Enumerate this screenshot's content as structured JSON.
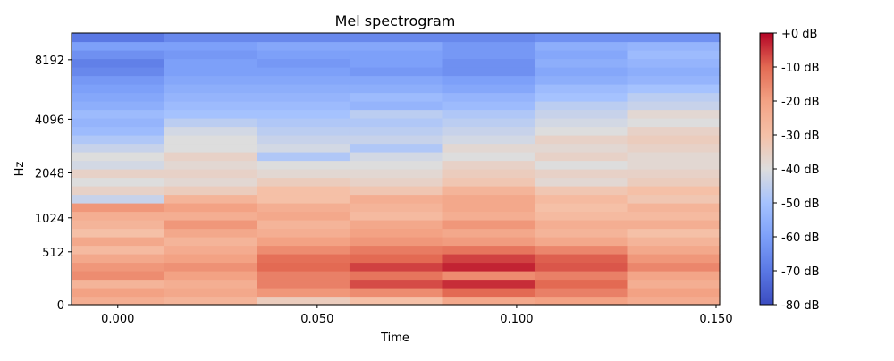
{
  "chart_data": {
    "type": "heatmap",
    "title": "Mel spectrogram",
    "xlabel": "Time",
    "ylabel": "Hz",
    "x_ticks": [
      "0.000",
      "0.050",
      "0.100",
      "0.150"
    ],
    "x_tick_values": [
      0.0,
      0.05,
      0.1,
      0.15
    ],
    "xlim": [
      -0.0116,
      0.1509
    ],
    "y_ticks": [
      "0",
      "512",
      "1024",
      "2048",
      "4096",
      "8192"
    ],
    "y_tick_values": [
      0,
      512,
      1024,
      2048,
      4096,
      8192
    ],
    "y_scale": "mel",
    "ylim": [
      0,
      11025
    ],
    "frame_times": [
      0.0,
      0.0232,
      0.0464,
      0.0697,
      0.0929,
      0.1161,
      0.1393
    ],
    "mel_bands": 32,
    "db_values_low_to_high_band": [
      [
        -24,
        -26,
        -34,
        -30,
        -22,
        -20,
        -23
      ],
      [
        -20,
        -22,
        -18,
        -16,
        -10,
        -14,
        -20
      ],
      [
        -26,
        -24,
        -14,
        -7,
        -4,
        -10,
        -24
      ],
      [
        -16,
        -20,
        -14,
        -12,
        -16,
        -14,
        -21
      ],
      [
        -18,
        -17,
        -10,
        -6,
        -3,
        -8,
        -15
      ],
      [
        -22,
        -20,
        -11,
        -10,
        -6,
        -9,
        -18
      ],
      [
        -28,
        -23,
        -16,
        -13,
        -12,
        -15,
        -22
      ],
      [
        -22,
        -26,
        -20,
        -18,
        -19,
        -22,
        -26
      ],
      [
        -30,
        -22,
        -24,
        -20,
        -22,
        -26,
        -30
      ],
      [
        -26,
        -18,
        -26,
        -22,
        -18,
        -24,
        -24
      ],
      [
        -24,
        -24,
        -22,
        -28,
        -24,
        -28,
        -28
      ],
      [
        -18,
        -20,
        -24,
        -26,
        -22,
        -30,
        -26
      ],
      [
        -44,
        -26,
        -30,
        -24,
        -22,
        -28,
        -32
      ],
      [
        -36,
        -34,
        -30,
        -32,
        -26,
        -32,
        -30
      ],
      [
        -40,
        -38,
        -34,
        -36,
        -32,
        -38,
        -34
      ],
      [
        -36,
        -36,
        -38,
        -38,
        -34,
        -36,
        -36
      ],
      [
        -42,
        -38,
        -40,
        -40,
        -36,
        -40,
        -38
      ],
      [
        -40,
        -36,
        -48,
        -42,
        -40,
        -36,
        -38
      ],
      [
        -44,
        -40,
        -42,
        -48,
        -38,
        -38,
        -36
      ],
      [
        -48,
        -40,
        -44,
        -44,
        -42,
        -36,
        -34
      ],
      [
        -52,
        -42,
        -46,
        -46,
        -44,
        -40,
        -36
      ],
      [
        -54,
        -46,
        -48,
        -48,
        -46,
        -42,
        -40
      ],
      [
        -52,
        -50,
        -50,
        -46,
        -48,
        -44,
        -38
      ],
      [
        -56,
        -52,
        -52,
        -54,
        -52,
        -46,
        -44
      ],
      [
        -58,
        -54,
        -54,
        -52,
        -54,
        -50,
        -46
      ],
      [
        -60,
        -56,
        -56,
        -56,
        -58,
        -52,
        -50
      ],
      [
        -62,
        -58,
        -58,
        -58,
        -60,
        -56,
        -54
      ],
      [
        -66,
        -60,
        -60,
        -62,
        -64,
        -58,
        -56
      ],
      [
        -68,
        -60,
        -62,
        -60,
        -64,
        -56,
        -54
      ],
      [
        -64,
        -62,
        -60,
        -60,
        -62,
        -58,
        -52
      ],
      [
        -60,
        -60,
        -58,
        -58,
        -62,
        -56,
        -54
      ],
      [
        -70,
        -66,
        -66,
        -66,
        -66,
        -64,
        -64
      ]
    ],
    "colormap": "coolwarm",
    "colorbar": {
      "min": -80,
      "max": 0,
      "ticks": [
        "+0 dB",
        "-10 dB",
        "-20 dB",
        "-30 dB",
        "-40 dB",
        "-50 dB",
        "-60 dB",
        "-70 dB",
        "-80 dB"
      ],
      "tick_values": [
        0,
        -10,
        -20,
        -30,
        -40,
        -50,
        -60,
        -70,
        -80
      ]
    }
  }
}
